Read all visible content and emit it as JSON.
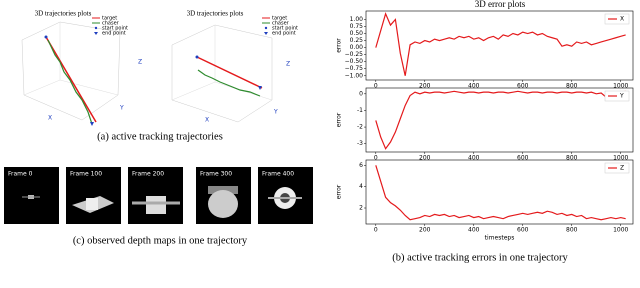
{
  "trajectory_plots": [
    {
      "title": "3D trajectories plots",
      "legend": [
        "target",
        "chaser",
        "start point",
        "end point"
      ],
      "axis_labels": [
        "X",
        "Y",
        "Z"
      ]
    },
    {
      "title": "3D trajectories plots",
      "legend": [
        "target",
        "chaser",
        "start point",
        "end point"
      ],
      "axis_labels": [
        "X",
        "Y",
        "Z"
      ]
    }
  ],
  "caption_a": "(a) active tracking trajectories",
  "frames": [
    "Frame 0",
    "Frame 100",
    "Frame 200",
    "Frame 300",
    "Frame 400"
  ],
  "caption_c": "(c) observed depth maps in one trajectory",
  "error_title": "3D error plots",
  "caption_b": "(b) active tracking errors in one trajectory",
  "chart_data": [
    {
      "type": "line",
      "ylabel": "error",
      "legend": "upper right",
      "x": [
        0,
        20,
        40,
        60,
        80,
        100,
        120,
        140,
        160,
        180,
        200,
        220,
        240,
        260,
        280,
        300,
        320,
        340,
        360,
        380,
        400,
        420,
        440,
        460,
        480,
        500,
        520,
        540,
        560,
        580,
        600,
        620,
        640,
        660,
        680,
        700,
        720,
        740,
        760,
        780,
        800,
        820,
        840,
        860,
        880,
        900,
        920,
        940,
        960,
        980,
        1000,
        1020
      ],
      "series": [
        {
          "name": "X",
          "color": "#e41a1c",
          "values": [
            0.0,
            0.6,
            1.2,
            0.8,
            1.0,
            -0.2,
            -1.0,
            0.1,
            0.2,
            0.15,
            0.25,
            0.2,
            0.3,
            0.25,
            0.3,
            0.35,
            0.3,
            0.4,
            0.35,
            0.4,
            0.3,
            0.35,
            0.25,
            0.35,
            0.4,
            0.3,
            0.45,
            0.4,
            0.5,
            0.45,
            0.55,
            0.5,
            0.55,
            0.45,
            0.5,
            0.4,
            0.35,
            0.3,
            0.05,
            0.1,
            0.05,
            0.2,
            0.15,
            0.2,
            0.1,
            0.15,
            0.2,
            0.25,
            0.3,
            0.35,
            0.4,
            0.45
          ]
        }
      ],
      "xlim": [
        -40,
        1050
      ],
      "xticks": [
        0,
        200,
        400,
        600,
        800,
        1000
      ],
      "ylim": [
        -1.15,
        1.3
      ],
      "yticks": [
        {
          "value": -1,
          "label": "−1.00"
        },
        {
          "value": -0.75,
          "label": "−0.75"
        },
        {
          "value": -0.5,
          "label": "−0.50"
        },
        {
          "value": -0.25,
          "label": "−0.25"
        },
        {
          "value": 0,
          "label": "0.00"
        },
        {
          "value": 0.25,
          "label": "0.25"
        },
        {
          "value": 0.5,
          "label": "0.50"
        },
        {
          "value": 0.75,
          "label": "0.75"
        },
        {
          "value": 1,
          "label": "1.00"
        }
      ]
    },
    {
      "type": "line",
      "ylabel": "error",
      "legend": "upper right",
      "x": [
        0,
        20,
        40,
        60,
        80,
        100,
        120,
        140,
        160,
        180,
        200,
        220,
        240,
        260,
        280,
        300,
        320,
        340,
        360,
        380,
        400,
        420,
        440,
        460,
        480,
        500,
        520,
        540,
        560,
        580,
        600,
        620,
        640,
        660,
        680,
        700,
        720,
        740,
        760,
        780,
        800,
        820,
        840,
        860,
        880,
        900,
        920,
        940,
        960,
        980,
        1000,
        1020
      ],
      "series": [
        {
          "name": "Y",
          "color": "#e41a1c",
          "values": [
            -1.6,
            -2.6,
            -3.3,
            -2.9,
            -2.3,
            -1.5,
            -0.7,
            -0.1,
            0.1,
            0.0,
            0.1,
            0.05,
            0.1,
            0.1,
            0.05,
            0.1,
            0.15,
            0.1,
            0.05,
            0.1,
            0.1,
            0.05,
            0.1,
            0.1,
            0.05,
            0.1,
            0.1,
            0.05,
            0.1,
            0.15,
            0.1,
            0.05,
            0.1,
            0.1,
            0.05,
            0.1,
            0.1,
            0.05,
            0.1,
            0.1,
            0.05,
            0.1,
            0.1,
            0.05,
            0.1,
            0.0,
            0.05,
            -0.2,
            0.05,
            0.1,
            0.1,
            0.15
          ]
        }
      ],
      "xlim": [
        -40,
        1050
      ],
      "xticks": [
        0,
        200,
        400,
        600,
        800,
        1000
      ],
      "ylim": [
        -3.5,
        0.35
      ],
      "yticks": [
        -3,
        -2,
        -1,
        0
      ]
    },
    {
      "type": "line",
      "ylabel": "error",
      "xlabel": "timesteps",
      "legend": "upper right",
      "x": [
        0,
        20,
        40,
        60,
        80,
        100,
        120,
        140,
        160,
        180,
        200,
        220,
        240,
        260,
        280,
        300,
        320,
        340,
        360,
        380,
        400,
        420,
        440,
        460,
        480,
        500,
        520,
        540,
        560,
        580,
        600,
        620,
        640,
        660,
        680,
        700,
        720,
        740,
        760,
        780,
        800,
        820,
        840,
        860,
        880,
        900,
        920,
        940,
        960,
        980,
        1000,
        1020
      ],
      "series": [
        {
          "name": "Z",
          "color": "#e41a1c",
          "values": [
            6.0,
            4.5,
            3.0,
            2.5,
            2.2,
            1.8,
            1.3,
            0.9,
            1.0,
            1.1,
            1.3,
            1.2,
            1.4,
            1.3,
            1.4,
            1.2,
            1.3,
            1.1,
            1.2,
            1.3,
            1.1,
            1.2,
            1.0,
            1.1,
            1.2,
            1.1,
            1.0,
            1.2,
            1.3,
            1.4,
            1.5,
            1.4,
            1.5,
            1.6,
            1.5,
            1.7,
            1.6,
            1.4,
            1.5,
            1.3,
            1.4,
            1.2,
            1.3,
            1.0,
            1.1,
            1.0,
            0.9,
            1.0,
            1.1,
            1.0,
            1.1,
            1.0
          ]
        }
      ],
      "xlim": [
        -40,
        1050
      ],
      "xticks": [
        0,
        200,
        400,
        600,
        800,
        1000
      ],
      "ylim": [
        0.5,
        6.5
      ],
      "yticks": [
        2,
        4,
        6
      ]
    }
  ]
}
